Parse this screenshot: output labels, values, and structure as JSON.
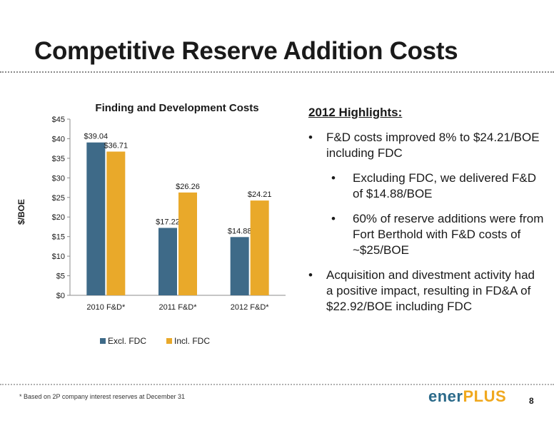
{
  "slide": {
    "title": "Competitive Reserve Addition Costs",
    "page_number": "8",
    "footnote": "* Based on 2P company interest reserves at December 31",
    "logo": {
      "part1": "ener",
      "part2": "PLUS"
    }
  },
  "highlights": {
    "heading": "2012 Highlights:",
    "bullets": [
      {
        "level": 1,
        "text": "F&D costs improved 8% to $24.21/BOE including FDC"
      },
      {
        "level": 2,
        "text": "Excluding FDC, we delivered F&D of $14.88/BOE"
      },
      {
        "level": 2,
        "text": "60% of reserve additions were from Fort Berthold with F&D costs of ~$25/BOE"
      },
      {
        "level": 1,
        "text": "Acquisition and divestment activity had a positive impact, resulting in FD&A of $22.92/BOE including FDC"
      }
    ]
  },
  "chart_data": {
    "type": "bar",
    "title": "Finding and Development Costs",
    "ylabel": "$/BOE",
    "xlabel": "",
    "categories": [
      "2010 F&D*",
      "2011 F&D*",
      "2012 F&D*"
    ],
    "series": [
      {
        "name": "Excl. FDC",
        "color": "#3e6a88",
        "values": [
          39.04,
          17.22,
          14.88
        ],
        "labels": [
          "$39.04",
          "$17.22",
          "$14.88"
        ]
      },
      {
        "name": "Incl. FDC",
        "color": "#e9a92a",
        "values": [
          36.71,
          26.26,
          24.21
        ],
        "labels": [
          "$36.71",
          "$26.26",
          "$24.21"
        ]
      }
    ],
    "ylim": [
      0,
      45
    ],
    "yticks": [
      0,
      5,
      10,
      15,
      20,
      25,
      30,
      35,
      40,
      45
    ],
    "ytick_labels": [
      "$0",
      "$5",
      "$10",
      "$15",
      "$20",
      "$25",
      "$30",
      "$35",
      "$40",
      "$45"
    ],
    "grid": false,
    "legend_position": "bottom"
  }
}
